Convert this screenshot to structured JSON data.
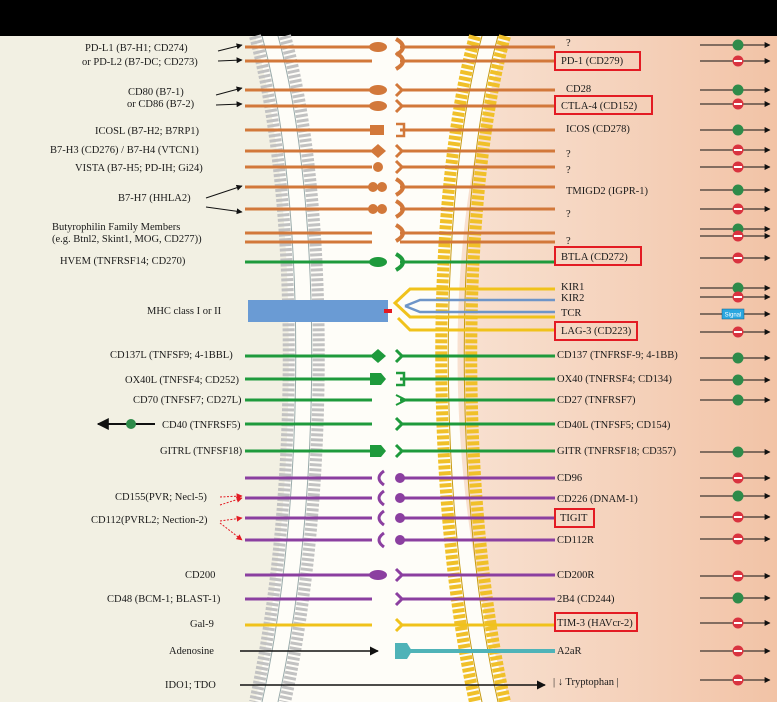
{
  "ligands": [
    {
      "text": "PD-L1 (B7-H1; CD274)"
    },
    {
      "text": "or PD-L2 (B7-DC; CD273)"
    },
    {
      "text": "CD80 (B7-1)"
    },
    {
      "text": "or CD86 (B7-2)"
    },
    {
      "text": "ICOSL (B7-H2; B7RP1)"
    },
    {
      "text": "B7-H3 (CD276) / B7-H4 (VTCN1)"
    },
    {
      "text": "VISTA (B7-H5; PD-IH; Gi24)"
    },
    {
      "text": "B7-H7 (HHLA2)"
    },
    {
      "text": "Butyrophilin Family Members"
    },
    {
      "text": "(e.g. Btnl2, Skint1, MOG, CD277))"
    },
    {
      "text": "HVEM (TNFRSF14; CD270)"
    },
    {
      "text": "MHC class I or II"
    },
    {
      "text": "CD137L (TNFSF9; 4-1BBL)"
    },
    {
      "text": "OX40L (TNFSF4; CD252)"
    },
    {
      "text": "CD70 (TNFSF7; CD27L)"
    },
    {
      "text": "CD40 (TNFRSF5)"
    },
    {
      "text": "GITRL (TNFSF18)"
    },
    {
      "text": "CD155(PVR; Necl-5)"
    },
    {
      "text": "CD112(PVRL2; Nection-2)"
    },
    {
      "text": "CD200"
    },
    {
      "text": "CD48 (BCM-1; BLAST-1)"
    },
    {
      "text": "Gal-9"
    },
    {
      "text": "Adenosine"
    },
    {
      "text": "IDO1; TDO"
    }
  ],
  "receptors": [
    {
      "text": "?"
    },
    {
      "text": "PD-1 (CD279)"
    },
    {
      "text": "CD28"
    },
    {
      "text": "CTLA-4 (CD152)"
    },
    {
      "text": "ICOS (CD278)"
    },
    {
      "text": "?"
    },
    {
      "text": "?"
    },
    {
      "text": "TMIGD2 (IGPR-1)"
    },
    {
      "text": "?"
    },
    {
      "text": "?"
    },
    {
      "text": "BTLA (CD272)"
    },
    {
      "text": "KIR1"
    },
    {
      "text": "KIR2"
    },
    {
      "text": "TCR"
    },
    {
      "text": "LAG-3 (CD223)"
    },
    {
      "text": "CD137 (TNFRSF-9; 4-1BB)"
    },
    {
      "text": "OX40 (TNFRSF4; CD134)"
    },
    {
      "text": "CD27 (TNFRSF7)"
    },
    {
      "text": "CD40L (TNFSF5; CD154)"
    },
    {
      "text": "GITR (TNFRSF18; CD357)"
    },
    {
      "text": "CD96"
    },
    {
      "text": "CD226 (DNAM-1)"
    },
    {
      "text": "TIGIT"
    },
    {
      "text": "CD112R"
    },
    {
      "text": "CD200R"
    },
    {
      "text": "2B4 (CD244)"
    },
    {
      "text": "TIM-3 (HAVcr-2)"
    },
    {
      "text": "A2aR"
    },
    {
      "text": "| ↓ Tryptophan |"
    }
  ],
  "signal_label": "Signal",
  "colors": {
    "orange": "#d2783a",
    "green": "#1e9a3c",
    "purple": "#8b3fa0",
    "yellow": "#f0c21b",
    "blue": "#6e95c8",
    "teal": "#4fb3b8",
    "highlight": "#e31b23",
    "stim": "#2e8b4a",
    "inhib": "#d9333f"
  }
}
